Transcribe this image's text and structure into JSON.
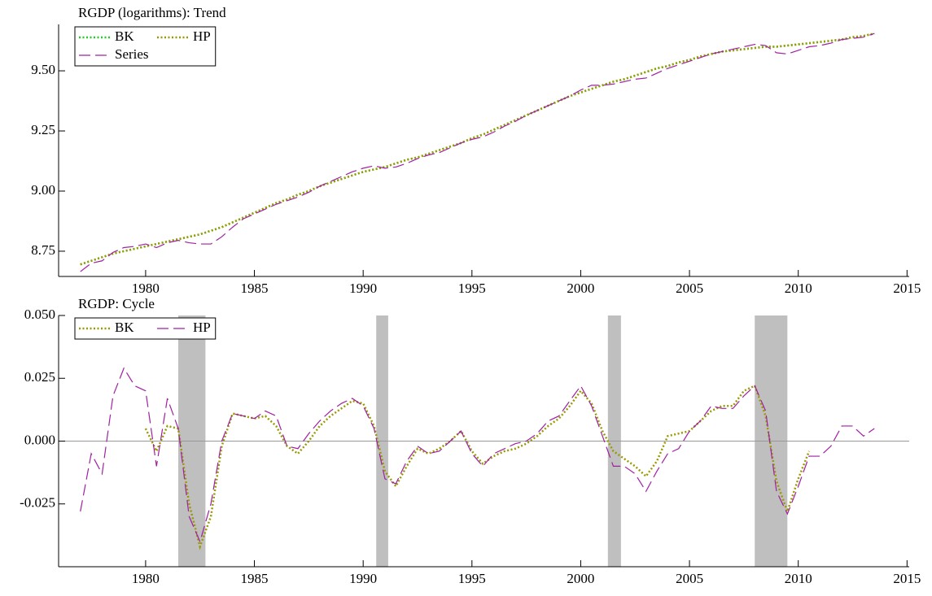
{
  "chart_data": [
    {
      "type": "line",
      "title": "RGDP (logarithms): Trend",
      "x": [
        1977,
        1977.5,
        1978,
        1978.5,
        1979,
        1979.5,
        1980,
        1980.5,
        1981,
        1981.5,
        1982,
        1982.5,
        1983,
        1983.5,
        1984,
        1984.5,
        1985,
        1985.5,
        1986,
        1986.5,
        1987,
        1987.5,
        1988,
        1988.5,
        1989,
        1989.5,
        1990,
        1990.5,
        1991,
        1991.5,
        1992,
        1992.5,
        1993,
        1993.5,
        1994,
        1994.5,
        1995,
        1995.5,
        1996,
        1996.5,
        1997,
        1997.5,
        1998,
        1998.5,
        1999,
        1999.5,
        2000,
        2000.5,
        2001,
        2001.5,
        2002,
        2002.5,
        2003,
        2003.5,
        2004,
        2004.5,
        2005,
        2005.5,
        2006,
        2006.5,
        2007,
        2007.5,
        2008,
        2008.5,
        2009,
        2009.5,
        2010,
        2010.5,
        2011,
        2011.5,
        2012,
        2012.5,
        2013,
        2013.5
      ],
      "series": [
        {
          "name": "BK",
          "color": "#22cc22",
          "style": "dotted",
          "values": [
            8.695,
            8.71,
            8.725,
            8.74,
            8.75,
            8.76,
            8.77,
            8.78,
            8.79,
            8.8,
            8.81,
            8.82,
            8.835,
            8.85,
            8.87,
            8.89,
            8.91,
            8.93,
            8.95,
            8.965,
            8.985,
            9.0,
            9.02,
            9.035,
            9.05,
            9.065,
            9.08,
            9.09,
            9.1,
            9.115,
            9.13,
            9.14,
            9.155,
            9.17,
            9.185,
            9.2,
            9.22,
            9.235,
            9.255,
            9.275,
            9.295,
            9.315,
            9.335,
            9.355,
            9.375,
            9.395,
            9.41,
            9.425,
            9.44,
            9.455,
            9.465,
            9.48,
            9.495,
            9.51,
            9.52,
            9.535,
            9.545,
            9.56,
            9.57,
            9.58,
            9.585,
            9.59,
            9.595,
            9.6,
            9.6,
            9.605,
            9.61,
            9.615,
            9.62,
            9.625,
            9.63,
            9.64,
            9.645,
            9.655
          ]
        },
        {
          "name": "HP",
          "color": "#999900",
          "style": "dotted",
          "values": [
            8.695,
            8.71,
            8.725,
            8.74,
            8.75,
            8.76,
            8.77,
            8.78,
            8.79,
            8.8,
            8.81,
            8.82,
            8.835,
            8.85,
            8.87,
            8.89,
            8.91,
            8.93,
            8.95,
            8.965,
            8.985,
            9.0,
            9.02,
            9.035,
            9.05,
            9.065,
            9.08,
            9.09,
            9.1,
            9.115,
            9.13,
            9.14,
            9.155,
            9.17,
            9.185,
            9.2,
            9.22,
            9.235,
            9.255,
            9.275,
            9.295,
            9.315,
            9.335,
            9.355,
            9.375,
            9.395,
            9.41,
            9.425,
            9.44,
            9.455,
            9.465,
            9.48,
            9.495,
            9.51,
            9.52,
            9.535,
            9.545,
            9.56,
            9.57,
            9.58,
            9.585,
            9.59,
            9.595,
            9.6,
            9.6,
            9.605,
            9.61,
            9.615,
            9.62,
            9.625,
            9.63,
            9.64,
            9.645,
            9.655
          ]
        },
        {
          "name": "Series",
          "color": "#a020a0",
          "style": "dashed",
          "values": [
            8.665,
            8.7,
            8.71,
            8.745,
            8.765,
            8.77,
            8.78,
            8.765,
            8.785,
            8.795,
            8.785,
            8.78,
            8.78,
            8.81,
            8.85,
            8.885,
            8.905,
            8.925,
            8.945,
            8.96,
            8.975,
            8.995,
            9.02,
            9.04,
            9.06,
            9.08,
            9.095,
            9.105,
            9.095,
            9.1,
            9.115,
            9.135,
            9.15,
            9.16,
            9.18,
            9.2,
            9.215,
            9.225,
            9.245,
            9.27,
            9.29,
            9.315,
            9.335,
            9.355,
            9.375,
            9.395,
            9.42,
            9.44,
            9.44,
            9.445,
            9.455,
            9.465,
            9.47,
            9.49,
            9.51,
            9.525,
            9.54,
            9.555,
            9.57,
            9.58,
            9.59,
            9.6,
            9.61,
            9.605,
            9.575,
            9.57,
            9.585,
            9.6,
            9.605,
            9.615,
            9.63,
            9.635,
            9.64,
            9.655
          ]
        }
      ],
      "xlim": [
        1976,
        2015.1
      ],
      "xticks": [
        1980,
        1985,
        1990,
        1995,
        2000,
        2005,
        2010,
        2015
      ],
      "ylim": [
        8.645,
        9.693
      ],
      "yticks": [
        {
          "value": 8.75,
          "label": "8.75"
        },
        {
          "value": 9,
          "label": "9.00"
        },
        9.25,
        {
          "value": 9.5,
          "label": "9.50"
        }
      ],
      "legend": "upper left"
    },
    {
      "type": "line",
      "title": "RGDP: Cycle",
      "x": [
        1977,
        1977.5,
        1978,
        1978.5,
        1979,
        1979.5,
        1980,
        1980.5,
        1981,
        1981.5,
        1982,
        1982.5,
        1983,
        1983.5,
        1984,
        1984.5,
        1985,
        1985.5,
        1986,
        1986.5,
        1987,
        1987.5,
        1988,
        1988.5,
        1989,
        1989.5,
        1990,
        1990.5,
        1991,
        1991.5,
        1992,
        1992.5,
        1993,
        1993.5,
        1994,
        1994.5,
        1995,
        1995.5,
        1996,
        1996.5,
        1997,
        1997.5,
        1998,
        1998.5,
        1999,
        1999.5,
        2000,
        2000.5,
        2001,
        2001.5,
        2002,
        2002.5,
        2003,
        2003.5,
        2004,
        2004.5,
        2005,
        2005.5,
        2006,
        2006.5,
        2007,
        2007.5,
        2008,
        2008.5,
        2009,
        2009.5,
        2010,
        2010.5,
        2011,
        2011.5,
        2012,
        2012.5,
        2013,
        2013.5
      ],
      "series": [
        {
          "name": "BK",
          "color": "#999900",
          "style": "dotted",
          "values": [
            null,
            null,
            null,
            null,
            null,
            null,
            0.005,
            -0.004,
            0.006,
            0.005,
            -0.025,
            -0.042,
            -0.03,
            -0.002,
            0.011,
            0.01,
            0.009,
            0.01,
            0.006,
            -0.002,
            -0.005,
            0.0,
            0.006,
            0.01,
            0.013,
            0.016,
            0.015,
            0.006,
            -0.012,
            -0.018,
            -0.01,
            -0.003,
            -0.005,
            -0.003,
            0.0,
            0.004,
            -0.004,
            -0.009,
            -0.006,
            -0.004,
            -0.003,
            -0.001,
            0.002,
            0.006,
            0.009,
            0.014,
            0.02,
            0.015,
            0.004,
            -0.004,
            -0.007,
            -0.01,
            -0.014,
            -0.008,
            0.002,
            0.003,
            0.004,
            0.008,
            0.012,
            0.014,
            0.014,
            0.02,
            0.022,
            0.01,
            -0.016,
            -0.028,
            -0.015,
            -0.004,
            null,
            null,
            null,
            null,
            null,
            null
          ]
        },
        {
          "name": "HP",
          "color": "#a020a0",
          "style": "dashed",
          "values": [
            -0.028,
            -0.005,
            -0.013,
            0.018,
            0.029,
            0.022,
            0.02,
            -0.01,
            0.017,
            0.005,
            -0.03,
            -0.04,
            -0.025,
            0.0,
            0.011,
            0.01,
            0.009,
            0.012,
            0.01,
            -0.002,
            -0.003,
            0.003,
            0.008,
            0.012,
            0.015,
            0.017,
            0.014,
            0.005,
            -0.015,
            -0.017,
            -0.008,
            -0.002,
            -0.005,
            -0.004,
            0.0,
            0.004,
            -0.005,
            -0.01,
            -0.005,
            -0.003,
            -0.001,
            0.0,
            0.003,
            0.008,
            0.01,
            0.016,
            0.022,
            0.014,
            0.002,
            -0.01,
            -0.01,
            -0.013,
            -0.02,
            -0.012,
            -0.005,
            -0.003,
            0.004,
            0.008,
            0.014,
            0.013,
            0.013,
            0.018,
            0.022,
            0.012,
            -0.02,
            -0.029,
            -0.018,
            -0.006,
            -0.006,
            -0.002,
            0.006,
            0.006,
            0.002,
            0.005
          ]
        }
      ],
      "shaded_periods": [
        [
          1981.5,
          1982.75
        ],
        [
          1990.6,
          1991.15
        ],
        [
          2001.25,
          2001.85
        ],
        [
          2008.0,
          2009.5
        ]
      ],
      "reference_line": 0,
      "xlim": [
        1976,
        2015.1
      ],
      "xticks": [
        1980,
        1985,
        1990,
        1995,
        2000,
        2005,
        2010,
        2015
      ],
      "ylim": [
        -0.05,
        0.05
      ],
      "yticks": [
        -0.025,
        {
          "value": 0,
          "label": "0.000"
        },
        0.025,
        {
          "value": 0.05,
          "label": "0.050"
        }
      ],
      "legend": "upper left"
    }
  ]
}
